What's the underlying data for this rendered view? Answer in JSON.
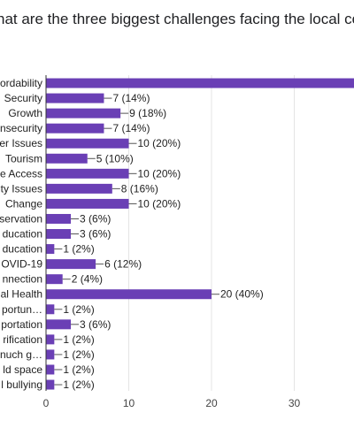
{
  "chart_data": {
    "type": "bar",
    "orientation": "horizontal",
    "title": "hat are the three biggest challenges facing the local cor",
    "xlabel": "",
    "ylabel": "",
    "xlim": [
      0,
      40
    ],
    "x_ticks": [
      "0",
      "10",
      "20",
      "30"
    ],
    "grid": true,
    "bar_color": "#6a3fb5",
    "categories": [
      "ordability",
      "Security",
      "Growth",
      "nsecurity",
      "er Issues",
      "Tourism",
      "e Access",
      "ty Issues",
      "Change",
      "servation",
      "ducation",
      "ducation",
      "OVID-19",
      "nnection",
      "al Health",
      "portun…",
      "portation",
      "rification",
      "nuch g…",
      "ld space",
      "l bullying"
    ],
    "values": [
      38,
      7,
      9,
      7,
      10,
      5,
      10,
      8,
      10,
      3,
      3,
      1,
      6,
      2,
      20,
      1,
      3,
      1,
      1,
      1,
      1
    ],
    "data_labels": [
      "",
      "7 (14%)",
      "9 (18%)",
      "7 (14%)",
      "10 (20%)",
      "5 (10%)",
      "10 (20%)",
      "8 (16%)",
      "10 (20%)",
      "3 (6%)",
      "3 (6%)",
      "1 (2%)",
      "6 (12%)",
      "2 (4%)",
      "20 (40%)",
      "1 (2%)",
      "3 (6%)",
      "1 (2%)",
      "1 (2%)",
      "1 (2%)",
      "1 (2%)"
    ]
  }
}
